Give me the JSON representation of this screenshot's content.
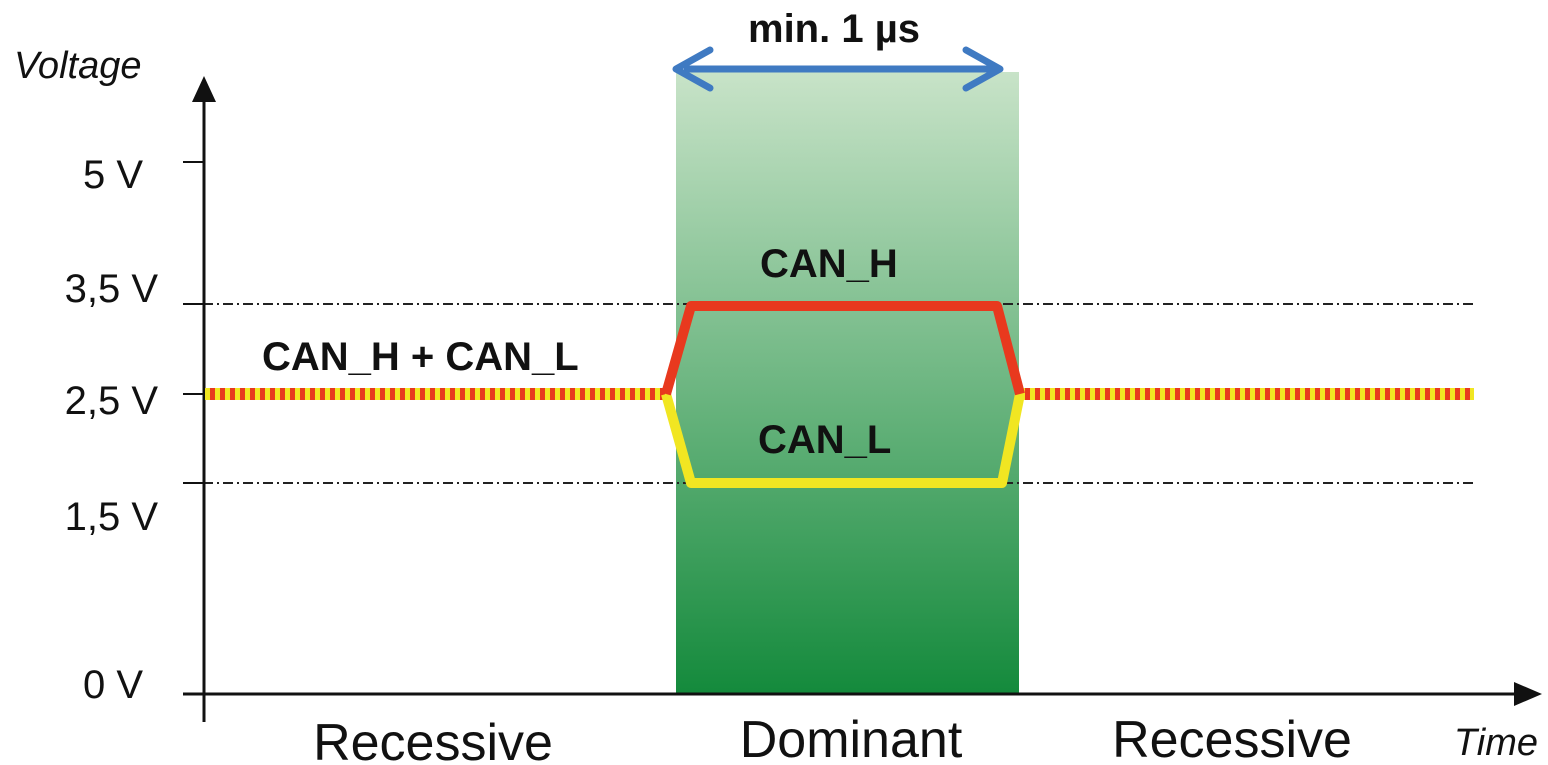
{
  "axes": {
    "y_title": "Voltage",
    "x_title": "Time",
    "y_ticks": [
      {
        "value": 5,
        "label": "5 V"
      },
      {
        "value": 3.5,
        "label": "3,5 V"
      },
      {
        "value": 2.5,
        "label": "2,5 V"
      },
      {
        "value": 1.5,
        "label": "1,5 V"
      },
      {
        "value": 0,
        "label": "0 V"
      }
    ],
    "reference_lines": [
      3.5,
      1.5
    ]
  },
  "states": {
    "left": "Recessive",
    "middle": "Dominant",
    "right": "Recessive"
  },
  "duration": {
    "label": "min. 1 µs"
  },
  "signals": {
    "combined_label": "CAN_H + CAN_L",
    "can_h_label": "CAN_H",
    "can_l_label": "CAN_L",
    "recessive_level": 2.5,
    "can_h_dominant_level": 3.5,
    "can_l_dominant_level": 1.5
  },
  "colors": {
    "can_h": "#e8391e",
    "can_l": "#f1e622",
    "dominant_band_top": "#c8e3c8",
    "dominant_band_bottom": "#148a3c",
    "duration_arrow": "#3f7ac2",
    "axis": "#111111",
    "reference_line": "#222222"
  }
}
